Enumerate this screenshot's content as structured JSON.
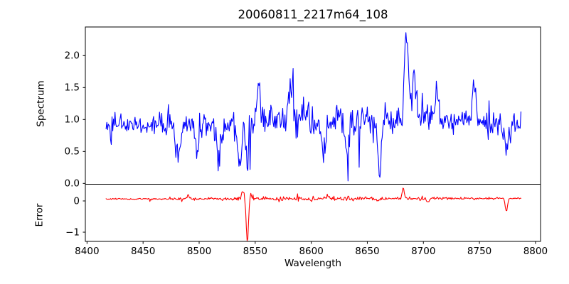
{
  "figure": {
    "title": "20060811_2217m64_108",
    "background": "#ffffff",
    "axis_color": "#000000"
  },
  "chart_data": [
    {
      "type": "line",
      "panel": "spectrum",
      "title": "20060811_2217m64_108",
      "ylabel": "Spectrum",
      "legend": null,
      "grid": false,
      "line_color": "#0000ff",
      "xlim": [
        8398.5,
        8804.5
      ],
      "ylim": [
        -0.013,
        2.448
      ],
      "x_range": [
        8417,
        8787
      ],
      "n_points": 560,
      "yticks": [
        "0.0",
        "0.5",
        "1.0",
        "1.5",
        "2.0"
      ],
      "ytick_values": [
        0,
        0.5,
        1.0,
        1.5,
        2.0
      ],
      "baseline": 0.95,
      "noise_sigma": 0.085,
      "clamp": [
        0.035,
        2.36
      ],
      "features": [
        {
          "x": 8481,
          "amp": -0.45,
          "width": 2.2
        },
        {
          "x": 8498,
          "amp": -0.38,
          "width": 2.0
        },
        {
          "x": 8517,
          "amp": -0.4,
          "width": 2.0
        },
        {
          "x": 8536,
          "amp": -0.62,
          "width": 1.8
        },
        {
          "x": 8543,
          "amp": -0.72,
          "width": 1.4
        },
        {
          "x": 8553,
          "amp": 0.62,
          "width": 1.4
        },
        {
          "x": 8582,
          "amp": 0.55,
          "width": 1.6
        },
        {
          "x": 8611,
          "amp": -0.58,
          "width": 1.8
        },
        {
          "x": 8632,
          "amp": -0.62,
          "width": 1.6
        },
        {
          "x": 8661,
          "amp": -0.88,
          "width": 1.6
        },
        {
          "x": 8685,
          "amp": 1.38,
          "width": 1.8
        },
        {
          "x": 8692,
          "amp": 0.7,
          "width": 1.5
        },
        {
          "x": 8712,
          "amp": 0.5,
          "width": 1.5
        },
        {
          "x": 8745,
          "amp": 0.6,
          "width": 1.4
        },
        {
          "x": 8774,
          "amp": -0.5,
          "width": 1.5
        }
      ]
    },
    {
      "type": "line",
      "panel": "error",
      "ylabel": "Error",
      "xlabel": "Wavelength",
      "legend": null,
      "grid": false,
      "line_color": "#ff0000",
      "xlim": [
        8398.5,
        8804.5
      ],
      "ylim": [
        -1.295,
        0.534
      ],
      "x_range": [
        8417,
        8787
      ],
      "n_points": 560,
      "yticks": [
        "0",
        "−1"
      ],
      "ytick_values": [
        0,
        -1
      ],
      "xticks": [
        "8400",
        "8450",
        "8500",
        "8550",
        "8600",
        "8650",
        "8700",
        "8750",
        "8800"
      ],
      "xtick_values": [
        8400,
        8450,
        8500,
        8550,
        8600,
        8650,
        8700,
        8750,
        8800
      ],
      "baseline": 0.065,
      "noise_sigma": 0.013,
      "clamp": [
        -1.27,
        0.46
      ],
      "features": [
        {
          "x": 8490,
          "amp": 0.1,
          "width": 1.2
        },
        {
          "x": 8539,
          "amp": 0.22,
          "width": 1.2
        },
        {
          "x": 8543,
          "amp": -1.38,
          "width": 1.0
        },
        {
          "x": 8546,
          "amp": 0.12,
          "width": 1.0
        },
        {
          "x": 8600,
          "amp": -0.09,
          "width": 1.2
        },
        {
          "x": 8614,
          "amp": 0.1,
          "width": 1.0
        },
        {
          "x": 8660,
          "amp": -0.1,
          "width": 1.2
        },
        {
          "x": 8682,
          "amp": 0.36,
          "width": 0.9
        },
        {
          "x": 8704,
          "amp": -0.1,
          "width": 1.2
        },
        {
          "x": 8774,
          "amp": -0.42,
          "width": 1.0
        }
      ]
    }
  ]
}
